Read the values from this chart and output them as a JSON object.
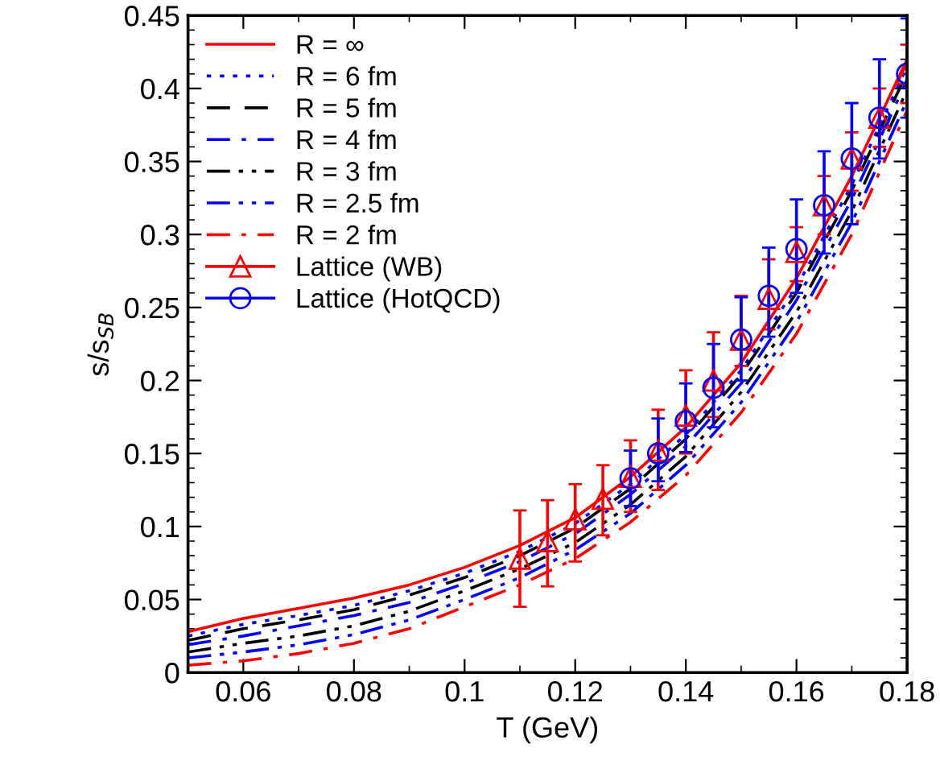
{
  "chart_data": {
    "type": "line",
    "xlabel": "T (GeV)",
    "ylabel": "s/s$_{SB}$",
    "xlim": [
      0.05,
      0.18
    ],
    "ylim": [
      0,
      0.45
    ],
    "xticks": [
      0.06,
      0.08,
      0.1,
      0.12,
      0.14,
      0.16,
      0.18
    ],
    "yticks": [
      0,
      0.05,
      0.1,
      0.15,
      0.2,
      0.25,
      0.3,
      0.35,
      0.4,
      0.45
    ],
    "grid": false,
    "legend": "top left",
    "x": [
      0.05,
      0.06,
      0.07,
      0.08,
      0.09,
      0.1,
      0.11,
      0.12,
      0.13,
      0.14,
      0.15,
      0.16,
      0.17,
      0.18
    ],
    "series": [
      {
        "name": "R = ∞",
        "color": "#ff0000",
        "line_style": "solid",
        "marker": "none",
        "values": [
          0.028,
          0.037,
          0.044,
          0.051,
          0.06,
          0.072,
          0.087,
          0.106,
          0.134,
          0.168,
          0.212,
          0.27,
          0.34,
          0.42
        ]
      },
      {
        "name": "R = 6 fm",
        "color": "#0000ff",
        "line_style": "dotted",
        "marker": "none",
        "values": [
          0.025,
          0.033,
          0.039,
          0.046,
          0.056,
          0.068,
          0.083,
          0.102,
          0.129,
          0.163,
          0.207,
          0.264,
          0.334,
          0.415
        ]
      },
      {
        "name": "R = 5 fm",
        "color": "#000000",
        "line_style": "dashed",
        "marker": "none",
        "values": [
          0.022,
          0.03,
          0.036,
          0.043,
          0.053,
          0.065,
          0.08,
          0.099,
          0.126,
          0.16,
          0.204,
          0.26,
          0.33,
          0.411
        ]
      },
      {
        "name": "R = 4 fm",
        "color": "#0000ff",
        "line_style": "dashdot",
        "marker": "none",
        "values": [
          0.019,
          0.025,
          0.032,
          0.039,
          0.048,
          0.061,
          0.076,
          0.095,
          0.122,
          0.155,
          0.198,
          0.255,
          0.324,
          0.406
        ]
      },
      {
        "name": "R = 3 fm",
        "color": "#000000",
        "line_style": "dashdotdot",
        "marker": "none",
        "values": [
          0.014,
          0.02,
          0.025,
          0.032,
          0.042,
          0.056,
          0.071,
          0.089,
          0.115,
          0.148,
          0.192,
          0.247,
          0.316,
          0.399
        ]
      },
      {
        "name": "R = 2.5 fm",
        "color": "#0000ff",
        "line_style": "dashdotdot",
        "marker": "none",
        "values": [
          0.01,
          0.014,
          0.019,
          0.026,
          0.036,
          0.05,
          0.065,
          0.084,
          0.109,
          0.142,
          0.185,
          0.24,
          0.308,
          0.392
        ]
      },
      {
        "name": "R = 2 fm",
        "color": "#ff0000",
        "line_style": "dashdot",
        "marker": "none",
        "values": [
          0.005,
          0.008,
          0.013,
          0.02,
          0.03,
          0.045,
          0.06,
          0.078,
          0.103,
          0.135,
          0.178,
          0.232,
          0.3,
          0.385
        ]
      },
      {
        "name": "Lattice (WB)",
        "type": "scatter",
        "color": "#ff0000",
        "marker": "triangle",
        "x": [
          0.11,
          0.115,
          0.12,
          0.125,
          0.13,
          0.135,
          0.14,
          0.145,
          0.15,
          0.155,
          0.16,
          0.165,
          0.17,
          0.175,
          0.18
        ],
        "values": [
          0.078,
          0.09,
          0.105,
          0.119,
          0.134,
          0.152,
          0.176,
          0.2,
          0.228,
          0.256,
          0.288,
          0.32,
          0.352,
          0.38,
          0.41
        ],
        "errors": [
          [
            0.045,
            0.111
          ],
          [
            0.059,
            0.118
          ],
          [
            0.076,
            0.129
          ],
          [
            0.094,
            0.142
          ],
          [
            0.11,
            0.159
          ],
          [
            0.125,
            0.18
          ],
          [
            0.15,
            0.207
          ],
          [
            0.175,
            0.233
          ],
          [
            0.21,
            0.258
          ],
          [
            0.235,
            0.283
          ],
          [
            0.268,
            0.305
          ],
          [
            0.3,
            0.34
          ],
          [
            0.33,
            0.37
          ],
          [
            0.36,
            0.4
          ],
          [
            0.39,
            0.43
          ]
        ]
      },
      {
        "name": "Lattice (HotQCD)",
        "type": "scatter",
        "color": "#0000ff",
        "marker": "circle",
        "x": [
          0.13,
          0.135,
          0.14,
          0.145,
          0.15,
          0.155,
          0.16,
          0.165,
          0.17,
          0.175,
          0.18
        ],
        "values": [
          0.133,
          0.15,
          0.172,
          0.195,
          0.228,
          0.258,
          0.29,
          0.32,
          0.352,
          0.38,
          0.41
        ],
        "errors": [
          [
            0.114,
            0.152
          ],
          [
            0.131,
            0.174
          ],
          [
            0.151,
            0.198
          ],
          [
            0.168,
            0.225
          ],
          [
            0.2,
            0.257
          ],
          [
            0.23,
            0.291
          ],
          [
            0.26,
            0.324
          ],
          [
            0.287,
            0.357
          ],
          [
            0.307,
            0.39
          ],
          [
            0.352,
            0.42
          ],
          [
            0.38,
            0.448
          ]
        ]
      }
    ]
  }
}
